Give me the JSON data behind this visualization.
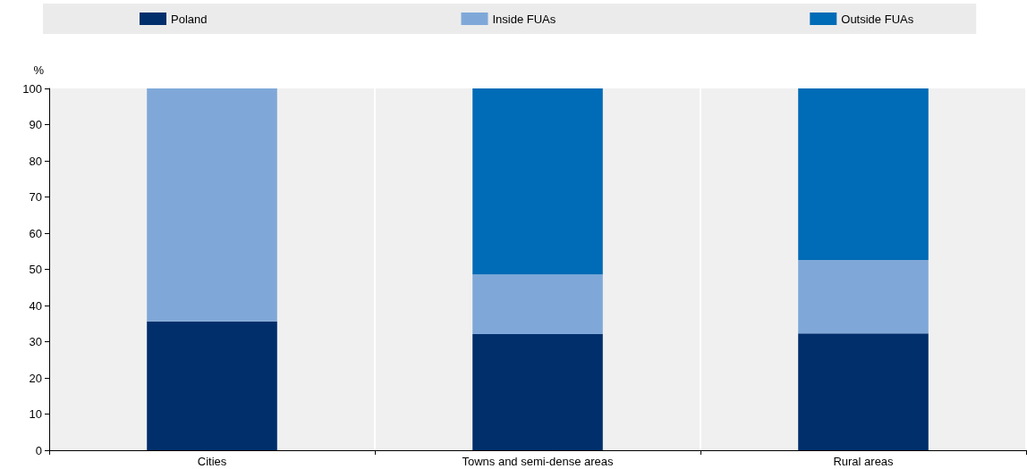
{
  "chart_data": {
    "type": "bar",
    "stacked": true,
    "ylabel": "%",
    "categories": [
      "Cities",
      "Towns and semi-dense areas",
      "Rural areas"
    ],
    "series": [
      {
        "name": "Poland",
        "color": "#002f6c",
        "values": [
          35.6,
          32.1,
          32.3
        ]
      },
      {
        "name": "Inside FUAs",
        "color": "#7fa8d9",
        "values": [
          64.4,
          16.5,
          20.3
        ]
      },
      {
        "name": "Outside FUAs",
        "color": "#006bb6",
        "values": [
          0,
          51.4,
          47.4
        ]
      }
    ],
    "ylim": [
      0,
      100
    ],
    "yticks": [
      0,
      10,
      20,
      30,
      40,
      50,
      60,
      70,
      80,
      90,
      100
    ],
    "grid": "x",
    "legend": "top"
  }
}
